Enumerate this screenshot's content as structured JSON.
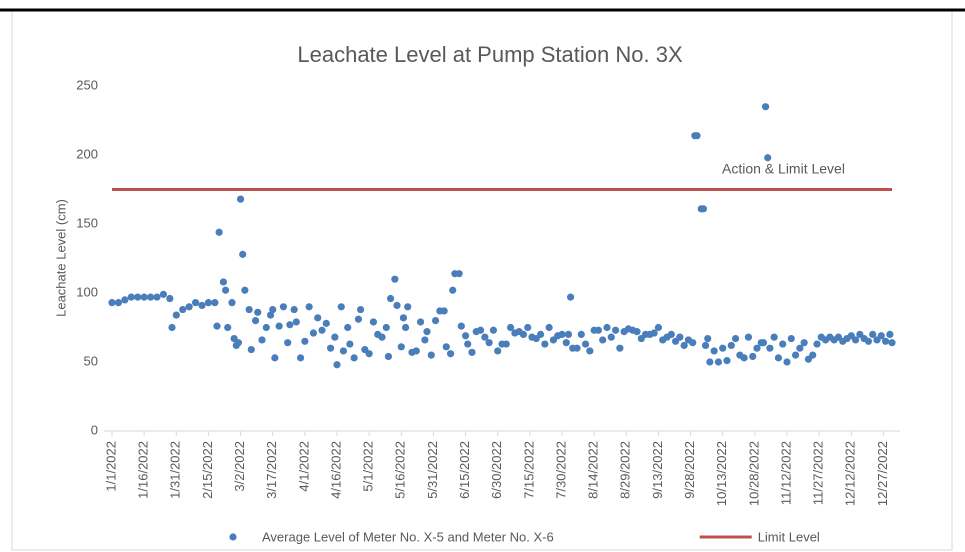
{
  "chart_data": {
    "type": "scatter",
    "title": "Leachate Level at Pump Station No. 3X",
    "y_label": "Leachate Level (cm)",
    "annotation": "Action & Limit Level",
    "xlim": [
      "1/1/2022",
      "12/31/2022"
    ],
    "xticks": [
      "1/1/2022",
      "1/16/2022",
      "1/31/2022",
      "2/15/2022",
      "3/2/2022",
      "3/17/2022",
      "4/1/2022",
      "4/16/2022",
      "5/1/2022",
      "5/16/2022",
      "5/31/2022",
      "6/15/2022",
      "6/30/2022",
      "7/15/2022",
      "7/30/2022",
      "8/14/2022",
      "8/29/2022",
      "9/13/2022",
      "9/28/2022",
      "10/13/2022",
      "10/28/2022",
      "11/12/2022",
      "11/27/2022",
      "12/12/2022",
      "12/27/2022"
    ],
    "ylim": [
      0,
      250
    ],
    "yticks": [
      0,
      50,
      100,
      150,
      200,
      250
    ],
    "grid": false,
    "legend": "bottom",
    "series": [
      {
        "name": "Average Level of Meter No. X-5 and Meter No. X-6",
        "color": "#4a7ebb",
        "kind": "points",
        "x": [
          "1/1/2022",
          "1/4/2022",
          "1/7/2022",
          "1/10/2022",
          "1/13/2022",
          "1/16/2022",
          "1/19/2022",
          "1/22/2022",
          "1/25/2022",
          "1/28/2022",
          "1/29/2022",
          "1/31/2022",
          "2/3/2022",
          "2/6/2022",
          "2/9/2022",
          "2/12/2022",
          "2/15/2022",
          "2/18/2022",
          "2/19/2022",
          "2/20/2022",
          "2/22/2022",
          "2/23/2022",
          "2/24/2022",
          "2/26/2022",
          "2/27/2022",
          "2/28/2022",
          "3/1/2022",
          "3/2/2022",
          "3/3/2022",
          "3/4/2022",
          "3/6/2022",
          "3/7/2022",
          "3/9/2022",
          "3/10/2022",
          "3/12/2022",
          "3/14/2022",
          "3/16/2022",
          "3/17/2022",
          "3/18/2022",
          "3/20/2022",
          "3/22/2022",
          "3/24/2022",
          "3/25/2022",
          "3/27/2022",
          "3/28/2022",
          "3/30/2022",
          "4/1/2022",
          "4/3/2022",
          "4/5/2022",
          "4/7/2022",
          "4/9/2022",
          "4/11/2022",
          "4/13/2022",
          "4/15/2022",
          "4/16/2022",
          "4/18/2022",
          "4/19/2022",
          "4/21/2022",
          "4/22/2022",
          "4/24/2022",
          "4/26/2022",
          "4/27/2022",
          "4/29/2022",
          "5/1/2022",
          "5/3/2022",
          "5/5/2022",
          "5/7/2022",
          "5/9/2022",
          "5/10/2022",
          "5/11/2022",
          "5/13/2022",
          "5/14/2022",
          "5/16/2022",
          "5/17/2022",
          "5/18/2022",
          "5/19/2022",
          "5/21/2022",
          "5/23/2022",
          "5/25/2022",
          "5/27/2022",
          "5/28/2022",
          "5/30/2022",
          "6/1/2022",
          "6/3/2022",
          "6/5/2022",
          "6/6/2022",
          "6/8/2022",
          "6/9/2022",
          "6/10/2022",
          "6/12/2022",
          "6/13/2022",
          "6/15/2022",
          "6/16/2022",
          "6/18/2022",
          "6/20/2022",
          "6/22/2022",
          "6/24/2022",
          "6/26/2022",
          "6/28/2022",
          "6/30/2022",
          "7/2/2022",
          "7/4/2022",
          "7/6/2022",
          "7/8/2022",
          "7/10/2022",
          "7/12/2022",
          "7/14/2022",
          "7/16/2022",
          "7/18/2022",
          "7/20/2022",
          "7/22/2022",
          "7/24/2022",
          "7/26/2022",
          "7/28/2022",
          "7/30/2022",
          "8/1/2022",
          "8/2/2022",
          "8/3/2022",
          "8/4/2022",
          "8/6/2022",
          "8/8/2022",
          "8/10/2022",
          "8/12/2022",
          "8/14/2022",
          "8/16/2022",
          "8/18/2022",
          "8/20/2022",
          "8/22/2022",
          "8/24/2022",
          "8/26/2022",
          "8/28/2022",
          "8/30/2022",
          "9/1/2022",
          "9/3/2022",
          "9/5/2022",
          "9/7/2022",
          "9/9/2022",
          "9/11/2022",
          "9/13/2022",
          "9/15/2022",
          "9/17/2022",
          "9/19/2022",
          "9/21/2022",
          "9/23/2022",
          "9/25/2022",
          "9/27/2022",
          "9/29/2022",
          "9/30/2022",
          "10/1/2022",
          "10/3/2022",
          "10/4/2022",
          "10/5/2022",
          "10/6/2022",
          "10/7/2022",
          "10/9/2022",
          "10/11/2022",
          "10/13/2022",
          "10/15/2022",
          "10/17/2022",
          "10/19/2022",
          "10/21/2022",
          "10/23/2022",
          "10/25/2022",
          "10/27/2022",
          "10/29/2022",
          "10/31/2022",
          "11/1/2022",
          "11/2/2022",
          "11/3/2022",
          "11/4/2022",
          "11/6/2022",
          "11/8/2022",
          "11/10/2022",
          "11/12/2022",
          "11/14/2022",
          "11/16/2022",
          "11/18/2022",
          "11/20/2022",
          "11/22/2022",
          "11/24/2022",
          "11/26/2022",
          "11/28/2022",
          "11/30/2022",
          "12/2/2022",
          "12/4/2022",
          "12/6/2022",
          "12/8/2022",
          "12/10/2022",
          "12/12/2022",
          "12/14/2022",
          "12/16/2022",
          "12/18/2022",
          "12/20/2022",
          "12/22/2022",
          "12/24/2022",
          "12/26/2022",
          "12/28/2022",
          "12/30/2022",
          "12/31/2022"
        ],
        "values": [
          93,
          93,
          95,
          97,
          97,
          97,
          97,
          97,
          99,
          96,
          75,
          84,
          88,
          90,
          93,
          91,
          93,
          93,
          76,
          144,
          108,
          102,
          75,
          93,
          67,
          62,
          64,
          168,
          128,
          102,
          88,
          59,
          80,
          86,
          66,
          75,
          84,
          88,
          53,
          76,
          90,
          64,
          77,
          88,
          79,
          53,
          65,
          90,
          71,
          82,
          73,
          78,
          60,
          68,
          48,
          90,
          58,
          75,
          63,
          53,
          81,
          88,
          59,
          56,
          79,
          70,
          68,
          75,
          54,
          96,
          110,
          91,
          61,
          82,
          75,
          90,
          57,
          58,
          79,
          66,
          72,
          55,
          80,
          87,
          87,
          61,
          56,
          102,
          114,
          114,
          76,
          69,
          63,
          57,
          72,
          73,
          68,
          64,
          73,
          58,
          63,
          63,
          75,
          71,
          72,
          70,
          75,
          68,
          67,
          70,
          63,
          75,
          66,
          69,
          70,
          64,
          70,
          97,
          60,
          60,
          70,
          63,
          58,
          73,
          73,
          66,
          75,
          68,
          73,
          60,
          72,
          74,
          73,
          72,
          67,
          70,
          70,
          71,
          75,
          66,
          68,
          70,
          65,
          68,
          62,
          66,
          64,
          214,
          214,
          161,
          161,
          62,
          67,
          50,
          58,
          50,
          60,
          51,
          62,
          67,
          55,
          53,
          68,
          54,
          60,
          64,
          64,
          235,
          198,
          60,
          68,
          53,
          63,
          50,
          67,
          55,
          60,
          64,
          52,
          55,
          63,
          68,
          66,
          68,
          66,
          68,
          65,
          67,
          69,
          66,
          70,
          67,
          65,
          70,
          66,
          69,
          65,
          70,
          64
        ]
      },
      {
        "name": "Limit Level",
        "color": "#c0504d",
        "kind": "line",
        "x": [
          "1/1/2022",
          "12/31/2022"
        ],
        "values": [
          175,
          175
        ]
      }
    ]
  }
}
